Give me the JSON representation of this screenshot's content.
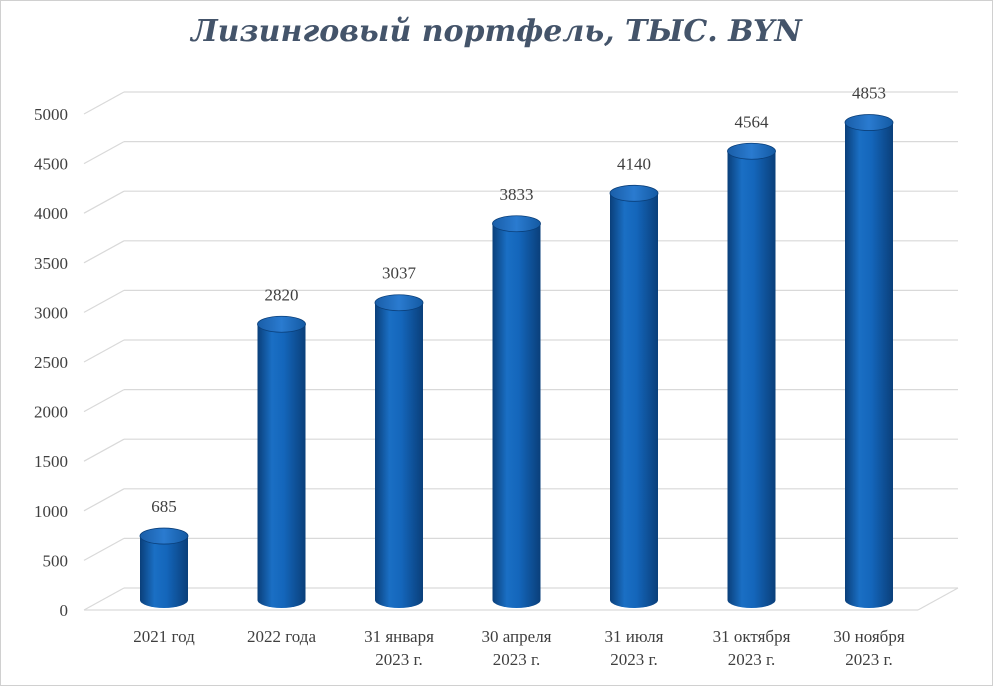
{
  "chart_data": {
    "type": "bar",
    "title": "Лизинговый портфель, ТЫС. BYN",
    "categories": [
      [
        "2021 год"
      ],
      [
        "2022 года"
      ],
      [
        "31 января",
        "2023 г."
      ],
      [
        "30 апреля",
        "2023 г."
      ],
      [
        "31 июля",
        "2023 г."
      ],
      [
        "31 октября",
        "2023 г."
      ],
      [
        "30 ноября",
        "2023 г."
      ]
    ],
    "values": [
      685,
      2820,
      3037,
      3833,
      4140,
      4564,
      4853
    ],
    "yticks": [
      "0",
      "500",
      "1000",
      "1500",
      "2000",
      "2500",
      "3000",
      "3500",
      "4000",
      "4500",
      "5000"
    ],
    "ylim": [
      0,
      5000
    ],
    "bar_color": "#0f63b8",
    "grid": true
  }
}
